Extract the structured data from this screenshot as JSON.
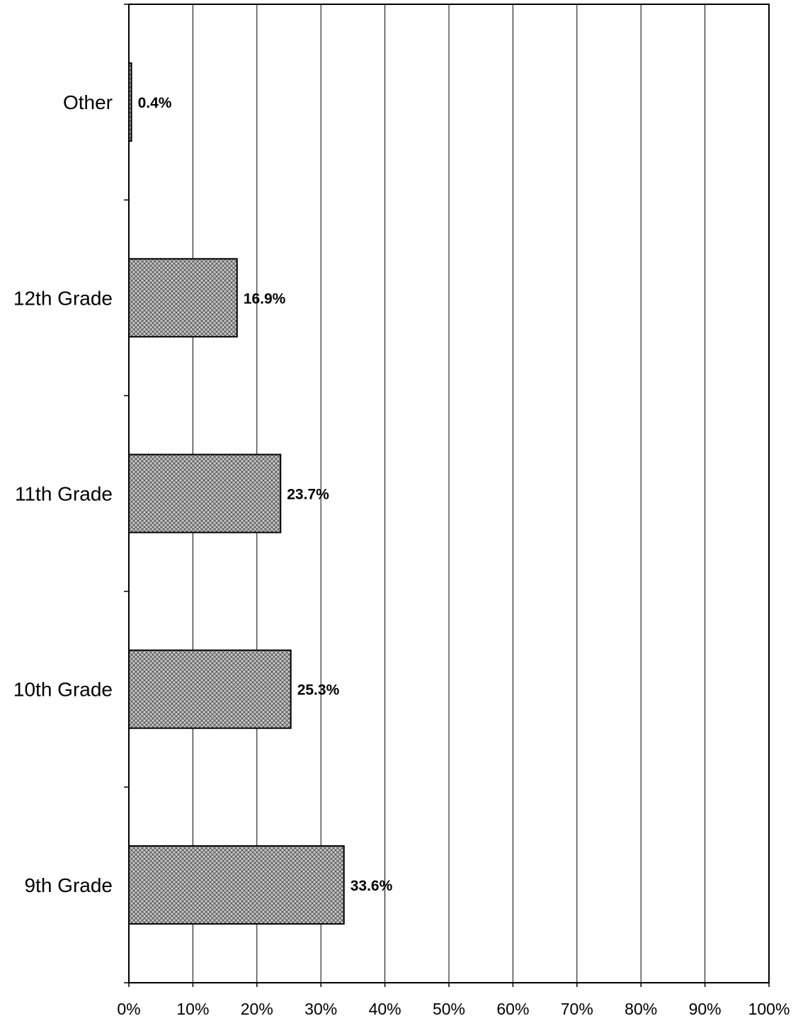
{
  "chart_data": {
    "type": "bar",
    "orientation": "horizontal",
    "categories": [
      "Other",
      "12th Grade",
      "11th Grade",
      "10th Grade",
      "9th Grade"
    ],
    "values": [
      0.4,
      16.9,
      23.7,
      25.3,
      33.6
    ],
    "value_labels": [
      "0.4%",
      "16.9%",
      "23.7%",
      "25.3%",
      "33.6%"
    ],
    "xlim": [
      0,
      100
    ],
    "x_ticks": [
      "0%",
      "10%",
      "20%",
      "30%",
      "40%",
      "50%",
      "60%",
      "70%",
      "80%",
      "90%",
      "100%"
    ],
    "grid": "vertical",
    "bar_fill": "crosshatch",
    "colors": {
      "bar": "#c8c8c8",
      "hatch": "#555555",
      "stroke": "#000000",
      "background": "#ffffff"
    }
  }
}
